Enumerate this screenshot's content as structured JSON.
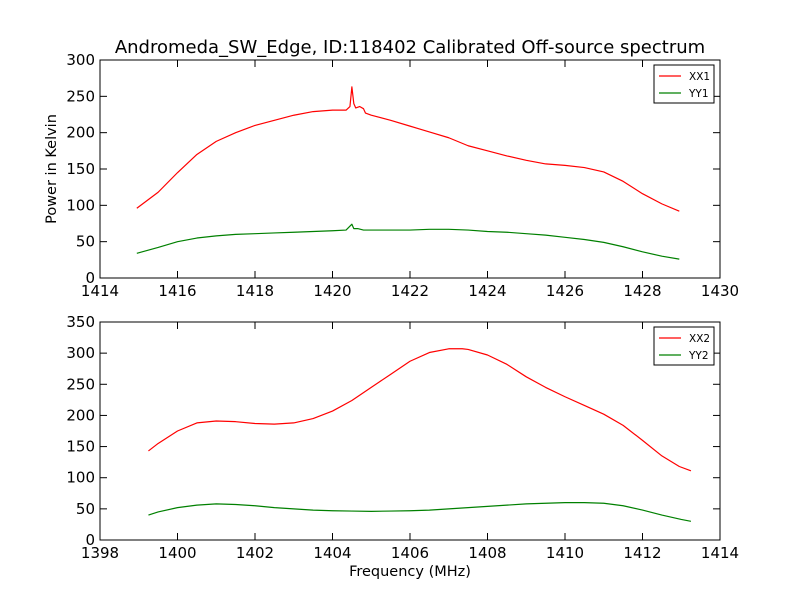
{
  "figure": {
    "title": "Andromeda_SW_Edge, ID:118402 Calibrated Off-source spectrum",
    "ylabel": "Power in Kelvin",
    "xlabel": "Frequency (MHz)"
  },
  "chart_data": [
    {
      "type": "line",
      "title": "Andromeda_SW_Edge, ID:118402 Calibrated Off-source spectrum",
      "ylabel": "Power in Kelvin",
      "xlabel": "",
      "xlim": [
        1414,
        1430
      ],
      "ylim": [
        0,
        300
      ],
      "xticks": [
        "1414",
        "1416",
        "1418",
        "1420",
        "1422",
        "1424",
        "1426",
        "1428",
        "1430"
      ],
      "yticks": [
        "0",
        "50",
        "100",
        "150",
        "200",
        "250",
        "300"
      ],
      "legend_position": "top-right",
      "series": [
        {
          "name": "XX1",
          "color": "#ff0000",
          "x": [
            1414.95,
            1415.5,
            1416.0,
            1416.5,
            1417.0,
            1417.5,
            1418.0,
            1418.5,
            1419.0,
            1419.5,
            1420.0,
            1420.35,
            1420.45,
            1420.5,
            1420.55,
            1420.6,
            1420.7,
            1420.8,
            1420.85,
            1421.0,
            1421.5,
            1422.0,
            1422.5,
            1423.0,
            1423.5,
            1424.0,
            1424.5,
            1425.0,
            1425.5,
            1426.0,
            1426.5,
            1427.0,
            1427.5,
            1428.0,
            1428.5,
            1428.95
          ],
          "y": [
            96,
            118,
            145,
            170,
            188,
            200,
            210,
            217,
            224,
            229,
            231,
            231,
            236,
            263,
            240,
            234,
            236,
            233,
            227,
            224,
            217,
            209,
            201,
            193,
            182,
            175,
            168,
            162,
            157,
            155,
            152,
            146,
            133,
            116,
            102,
            92
          ]
        },
        {
          "name": "YY1",
          "color": "#008000",
          "x": [
            1414.95,
            1415.5,
            1416.0,
            1416.5,
            1417.0,
            1417.5,
            1418.0,
            1418.5,
            1419.0,
            1419.5,
            1420.0,
            1420.35,
            1420.5,
            1420.55,
            1420.65,
            1420.8,
            1421.0,
            1421.5,
            1422.0,
            1422.5,
            1423.0,
            1423.5,
            1424.0,
            1424.5,
            1425.0,
            1425.5,
            1426.0,
            1426.5,
            1427.0,
            1427.5,
            1428.0,
            1428.5,
            1428.95
          ],
          "y": [
            34,
            42,
            50,
            55,
            58,
            60,
            61,
            62,
            63,
            64,
            65,
            66,
            74,
            68,
            68,
            66,
            66,
            66,
            66,
            67,
            67,
            66,
            64,
            63,
            61,
            59,
            56,
            53,
            49,
            43,
            36,
            30,
            26
          ]
        }
      ]
    },
    {
      "type": "line",
      "title": "",
      "ylabel": "",
      "xlabel": "Frequency (MHz)",
      "xlim": [
        1398,
        1414
      ],
      "ylim": [
        0,
        350
      ],
      "xticks": [
        "1398",
        "1400",
        "1402",
        "1404",
        "1406",
        "1408",
        "1410",
        "1412",
        "1414"
      ],
      "yticks": [
        "0",
        "50",
        "100",
        "150",
        "200",
        "250",
        "300",
        "350"
      ],
      "legend_position": "top-right",
      "series": [
        {
          "name": "XX2",
          "color": "#ff0000",
          "x": [
            1399.25,
            1399.5,
            1400.0,
            1400.5,
            1401.0,
            1401.5,
            1402.0,
            1402.5,
            1403.0,
            1403.5,
            1404.0,
            1404.5,
            1405.0,
            1405.5,
            1406.0,
            1406.5,
            1407.0,
            1407.35,
            1407.5,
            1408.0,
            1408.5,
            1409.0,
            1409.5,
            1410.0,
            1410.5,
            1411.0,
            1411.5,
            1412.0,
            1412.5,
            1412.95,
            1413.25
          ],
          "y": [
            143,
            155,
            175,
            188,
            191,
            190,
            187,
            186,
            188,
            195,
            207,
            224,
            245,
            266,
            287,
            301,
            307,
            307,
            306,
            297,
            282,
            262,
            245,
            230,
            216,
            202,
            184,
            160,
            135,
            118,
            111
          ]
        },
        {
          "name": "YY2",
          "color": "#008000",
          "x": [
            1399.25,
            1399.5,
            1400.0,
            1400.5,
            1401.0,
            1401.5,
            1402.0,
            1402.5,
            1403.0,
            1403.5,
            1404.0,
            1404.5,
            1405.0,
            1405.5,
            1406.0,
            1406.5,
            1407.0,
            1407.5,
            1408.0,
            1408.5,
            1409.0,
            1409.5,
            1410.0,
            1410.5,
            1411.0,
            1411.5,
            1412.0,
            1412.5,
            1413.0,
            1413.25
          ],
          "y": [
            40,
            45,
            52,
            56,
            58,
            57,
            55,
            52,
            50,
            48,
            47,
            46.5,
            46,
            46.5,
            47,
            48,
            50,
            52,
            54,
            56,
            58,
            59,
            60,
            60,
            59,
            55,
            48,
            40,
            33,
            30
          ]
        }
      ]
    }
  ]
}
